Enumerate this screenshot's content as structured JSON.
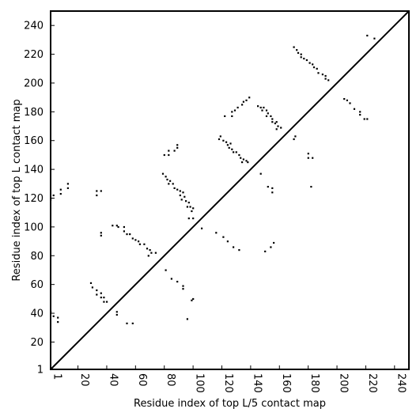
{
  "chart_data": {
    "type": "scatter",
    "xlabel": "Residue index of top L/5 contact map",
    "ylabel": "Residue index of top L contact map",
    "xlim": [
      1,
      250
    ],
    "ylim": [
      1,
      250
    ],
    "x_ticks": [
      1,
      20,
      40,
      60,
      80,
      100,
      120,
      140,
      160,
      180,
      200,
      220,
      240
    ],
    "y_ticks": [
      1,
      20,
      40,
      60,
      80,
      100,
      120,
      140,
      160,
      180,
      200,
      220,
      240
    ],
    "grid": false,
    "diagonal": true,
    "marker_color": "#000000",
    "series": [
      {
        "points": [
          [
            1,
            119
          ],
          [
            3,
            122
          ],
          [
            8,
            123
          ],
          [
            8,
            126
          ],
          [
            13,
            127
          ],
          [
            13,
            130
          ],
          [
            33,
            122
          ],
          [
            33,
            125
          ],
          [
            36,
            125
          ],
          [
            36,
            96
          ],
          [
            36,
            94
          ],
          [
            44,
            101
          ],
          [
            47,
            101
          ],
          [
            48,
            100
          ],
          [
            52,
            100
          ],
          [
            52,
            97
          ],
          [
            54,
            95
          ],
          [
            56,
            95
          ],
          [
            58,
            92
          ],
          [
            60,
            91
          ],
          [
            62,
            90
          ],
          [
            63,
            88
          ],
          [
            66,
            88
          ],
          [
            68,
            85
          ],
          [
            70,
            84
          ],
          [
            71,
            82
          ],
          [
            69,
            80
          ],
          [
            74,
            82
          ],
          [
            79,
            137
          ],
          [
            81,
            135
          ],
          [
            82,
            133
          ],
          [
            84,
            132
          ],
          [
            83,
            130
          ],
          [
            86,
            130
          ],
          [
            87,
            127
          ],
          [
            89,
            126
          ],
          [
            91,
            125
          ],
          [
            93,
            124
          ],
          [
            91,
            122
          ],
          [
            94,
            121
          ],
          [
            92,
            119
          ],
          [
            95,
            118
          ],
          [
            97,
            117
          ],
          [
            96,
            114
          ],
          [
            98,
            114
          ],
          [
            100,
            113
          ],
          [
            99,
            111
          ],
          [
            100,
            106
          ],
          [
            97,
            106
          ],
          [
            80,
            150
          ],
          [
            83,
            150
          ],
          [
            83,
            153
          ],
          [
            87,
            153
          ],
          [
            89,
            155
          ],
          [
            89,
            157
          ],
          [
            118,
            161
          ],
          [
            119,
            163
          ],
          [
            121,
            160
          ],
          [
            123,
            159
          ],
          [
            124,
            157
          ],
          [
            126,
            158
          ],
          [
            125,
            155
          ],
          [
            127,
            154
          ],
          [
            128,
            152
          ],
          [
            130,
            152
          ],
          [
            132,
            150
          ],
          [
            133,
            148
          ],
          [
            135,
            147
          ],
          [
            137,
            146
          ],
          [
            134,
            145
          ],
          [
            138,
            145
          ],
          [
            122,
            177
          ],
          [
            127,
            177
          ],
          [
            127,
            180
          ],
          [
            129,
            181
          ],
          [
            131,
            183
          ],
          [
            134,
            185
          ],
          [
            135,
            187
          ],
          [
            137,
            188
          ],
          [
            139,
            190
          ],
          [
            145,
            184
          ],
          [
            147,
            183
          ],
          [
            149,
            183
          ],
          [
            148,
            181
          ],
          [
            151,
            181
          ],
          [
            152,
            179
          ],
          [
            151,
            177
          ],
          [
            154,
            177
          ],
          [
            155,
            175
          ],
          [
            155,
            173
          ],
          [
            158,
            173
          ],
          [
            157,
            172
          ],
          [
            159,
            170
          ],
          [
            161,
            169
          ],
          [
            158,
            168
          ],
          [
            170,
            161
          ],
          [
            171,
            163
          ],
          [
            170,
            225
          ],
          [
            172,
            223
          ],
          [
            173,
            221
          ],
          [
            175,
            220
          ],
          [
            175,
            218
          ],
          [
            177,
            217
          ],
          [
            179,
            216
          ],
          [
            181,
            214
          ],
          [
            183,
            213
          ],
          [
            184,
            211
          ],
          [
            186,
            210
          ],
          [
            187,
            207
          ],
          [
            190,
            206
          ],
          [
            192,
            205
          ],
          [
            192,
            203
          ],
          [
            194,
            202
          ],
          [
            205,
            189
          ],
          [
            207,
            188
          ],
          [
            209,
            186
          ],
          [
            212,
            182
          ],
          [
            216,
            180
          ],
          [
            216,
            178
          ],
          [
            219,
            175
          ],
          [
            221,
            175
          ],
          [
            221,
            233
          ],
          [
            226,
            231
          ],
          [
            180,
            151
          ],
          [
            180,
            148
          ],
          [
            183,
            148
          ],
          [
            182,
            128
          ],
          [
            147,
            137
          ],
          [
            152,
            128
          ],
          [
            155,
            127
          ],
          [
            155,
            124
          ],
          [
            29,
            61
          ],
          [
            30,
            58
          ],
          [
            33,
            56
          ],
          [
            33,
            53
          ],
          [
            36,
            54
          ],
          [
            36,
            51
          ],
          [
            38,
            51
          ],
          [
            40,
            48
          ],
          [
            38,
            48
          ],
          [
            81,
            70
          ],
          [
            85,
            64
          ],
          [
            89,
            62
          ],
          [
            93,
            59
          ],
          [
            93,
            57
          ],
          [
            54,
            33
          ],
          [
            58,
            33
          ],
          [
            47,
            41
          ],
          [
            47,
            39
          ],
          [
            1,
            41
          ],
          [
            3,
            38
          ],
          [
            6,
            37
          ],
          [
            6,
            34
          ],
          [
            96,
            36
          ],
          [
            99,
            49
          ],
          [
            100,
            50
          ],
          [
            106,
            99
          ],
          [
            116,
            96
          ],
          [
            121,
            93
          ],
          [
            124,
            90
          ],
          [
            128,
            86
          ],
          [
            132,
            84
          ],
          [
            150,
            83
          ],
          [
            154,
            86
          ],
          [
            156,
            89
          ]
        ]
      }
    ]
  }
}
